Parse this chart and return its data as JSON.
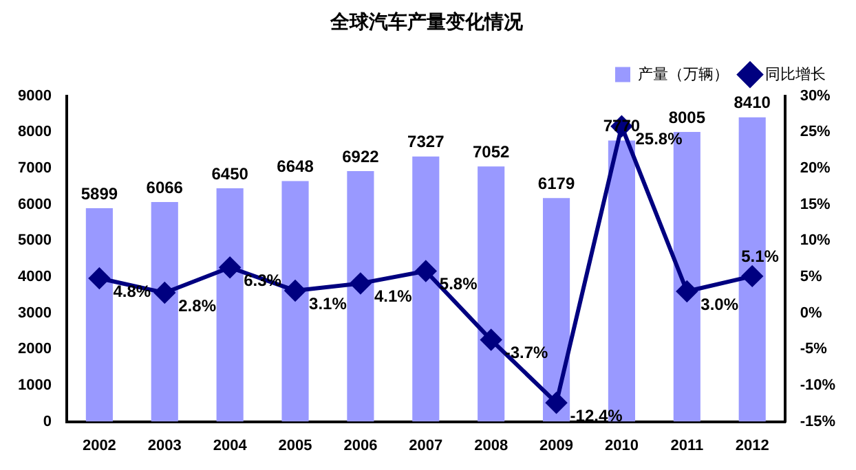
{
  "chart_data": {
    "type": "bar",
    "title": "全球汽车产量变化情况",
    "categories": [
      "2002",
      "2003",
      "2004",
      "2005",
      "2006",
      "2007",
      "2008",
      "2009",
      "2010",
      "2011",
      "2012"
    ],
    "series": [
      {
        "name": "产量（万辆）",
        "color": "#9999ff",
        "values": [
          5899,
          6066,
          6450,
          6648,
          6922,
          7327,
          7052,
          6179,
          7770,
          8005,
          8410
        ]
      },
      {
        "name": "同比增长",
        "type": "line",
        "axis": "y2",
        "color": "#000080",
        "marker": "diamond",
        "values": [
          4.8,
          2.8,
          6.3,
          3.1,
          4.1,
          5.8,
          -3.7,
          -12.4,
          25.8,
          3.0,
          5.1
        ],
        "value_labels": [
          "4.8%",
          "2.8%",
          "6.3%",
          "3.1%",
          "4.1%",
          "5.8%",
          "-3.7%",
          "-12.4%",
          "25.8%",
          "3.0%",
          "5.1%"
        ]
      }
    ],
    "data_labels": true,
    "ylim": [
      0,
      9000
    ],
    "yticks": [
      0,
      1000,
      2000,
      3000,
      4000,
      5000,
      6000,
      7000,
      8000,
      9000
    ],
    "y2lim": [
      -15,
      30
    ],
    "y2ticks": [
      {
        "value": -15,
        "label": "-15%"
      },
      {
        "value": -10,
        "label": "-10%"
      },
      {
        "value": -5,
        "label": "-5%"
      },
      {
        "value": 0,
        "label": "0%"
      },
      {
        "value": 5,
        "label": "5%"
      },
      {
        "value": 10,
        "label": "10%"
      },
      {
        "value": 15,
        "label": "15%"
      },
      {
        "value": 20,
        "label": "20%"
      },
      {
        "value": 25,
        "label": "25%"
      },
      {
        "value": 30,
        "label": "30%"
      }
    ],
    "grid": false,
    "legend": "top right"
  }
}
